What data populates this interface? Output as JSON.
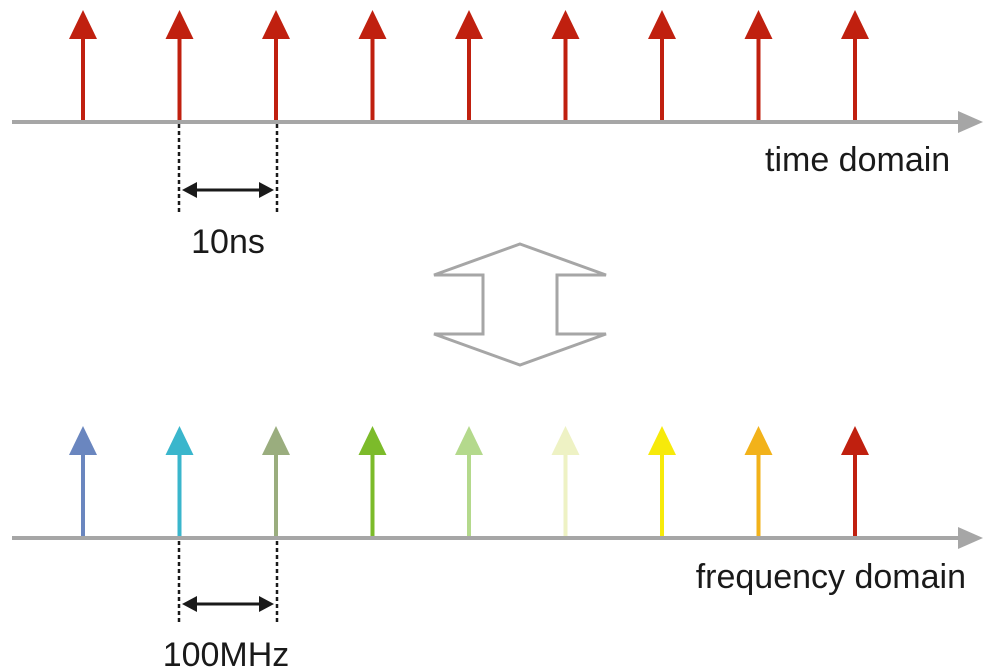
{
  "time_domain": {
    "axis_label": "time domain",
    "spacing_label": "10ns",
    "pulse_color": "#c0200f",
    "pulse_count": 9
  },
  "frequency_domain": {
    "axis_label": "frequency domain",
    "spacing_label": "100MHz",
    "line_colors": [
      "#6a86bf",
      "#3ab6cc",
      "#9aad7e",
      "#7cbb2a",
      "#b4d98c",
      "#eef2c4",
      "#f7ea0a",
      "#f2b21a",
      "#c0200f"
    ]
  },
  "colors": {
    "axis": "#a6a6a6",
    "transform_arrow": "#a6a6a6",
    "dimension": "#1a1a1a"
  },
  "icons": {
    "transform": "double-arrow-icon"
  }
}
